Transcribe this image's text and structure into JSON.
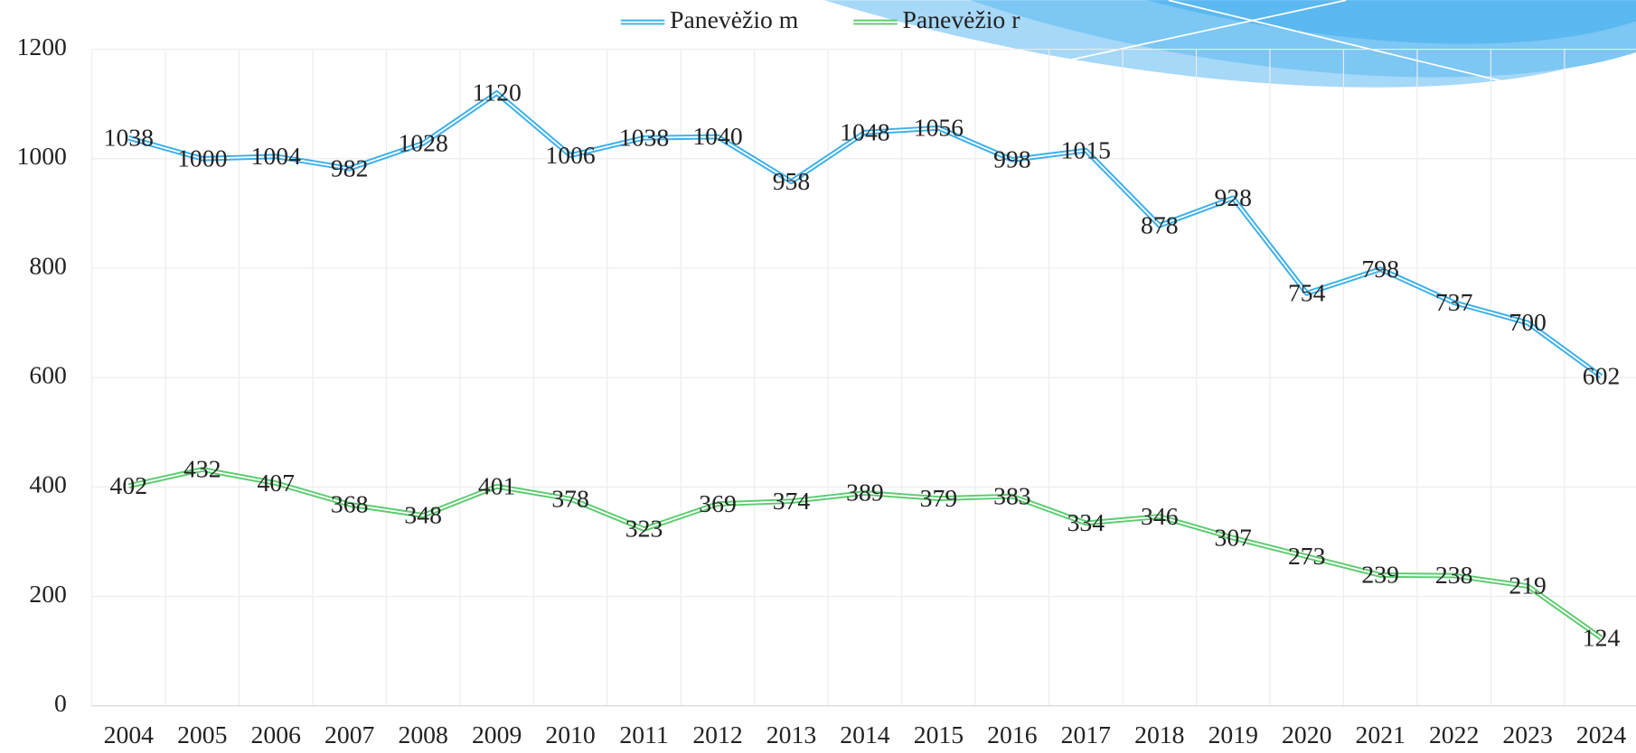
{
  "chart_data": {
    "type": "line",
    "categories": [
      "2004",
      "2005",
      "2006",
      "2007",
      "2008",
      "2009",
      "2010",
      "2011",
      "2012",
      "2013",
      "2014",
      "2015",
      "2016",
      "2017",
      "2018",
      "2019",
      "2020",
      "2021",
      "2022",
      "2023",
      "2024"
    ],
    "series": [
      {
        "name": "Panevėžio m",
        "color": "#3bb0ea",
        "values": [
          1038,
          1000,
          1004,
          982,
          1028,
          1120,
          1006,
          1038,
          1040,
          958,
          1048,
          1056,
          998,
          1015,
          878,
          928,
          754,
          798,
          737,
          700,
          602
        ]
      },
      {
        "name": "Panevėžio r",
        "color": "#5ccc70",
        "values": [
          402,
          432,
          407,
          368,
          348,
          401,
          378,
          323,
          369,
          374,
          389,
          379,
          383,
          334,
          346,
          307,
          273,
          239,
          238,
          219,
          124
        ]
      }
    ],
    "ylim": [
      0,
      1200
    ],
    "yticks": [
      0,
      200,
      400,
      600,
      800,
      1000,
      1200
    ],
    "grid": true,
    "legend": "top"
  }
}
